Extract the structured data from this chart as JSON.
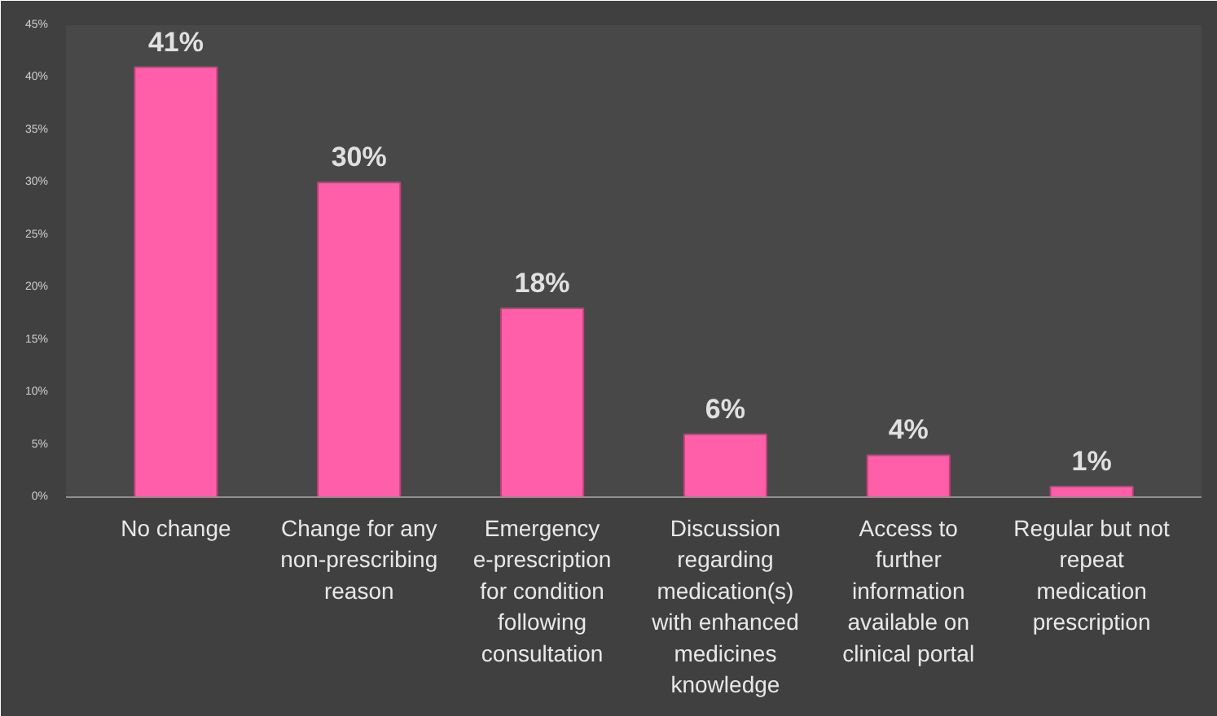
{
  "chart_data": {
    "type": "bar",
    "categories": [
      "No change",
      "Change for any non-prescribing reason",
      "Emergency e-prescription for condition following consultation",
      "Discussion regarding medication(s) with enhanced medicines knowledge",
      "Access to further information available on clinical portal",
      "Regular but not repeat medication prescription"
    ],
    "values": [
      41,
      30,
      18,
      6,
      4,
      1
    ],
    "value_labels": [
      "41%",
      "30%",
      "18%",
      "6%",
      "4%",
      "1%"
    ],
    "color": "#ff5fa8",
    "ylim": [
      0,
      45
    ],
    "yticks": [
      {
        "value": 0,
        "label": "0%"
      },
      {
        "value": 5,
        "label": "5%"
      },
      {
        "value": 10,
        "label": "10%"
      },
      {
        "value": 15,
        "label": "15%"
      },
      {
        "value": 20,
        "label": "20%"
      },
      {
        "value": 25,
        "label": "25%"
      },
      {
        "value": 30,
        "label": "30%"
      },
      {
        "value": 35,
        "label": "35%"
      },
      {
        "value": 40,
        "label": "40%"
      },
      {
        "value": 45,
        "label": "45%"
      }
    ],
    "grid": false
  }
}
